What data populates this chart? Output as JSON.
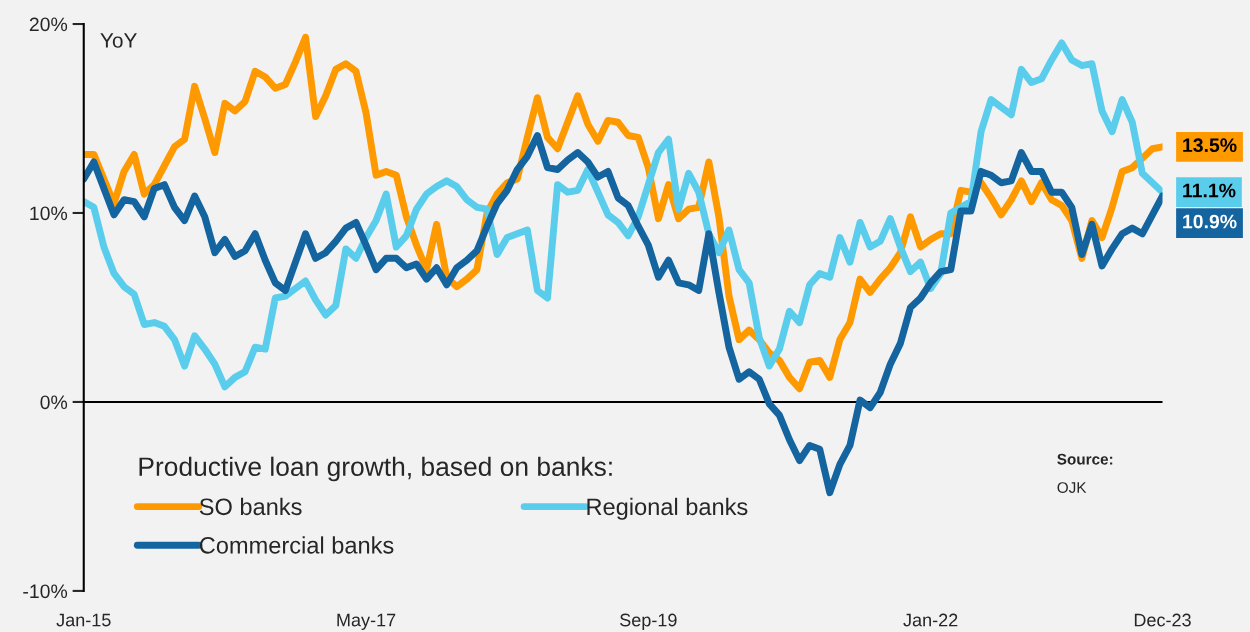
{
  "chart_data": {
    "type": "line",
    "ylabel": "YoY",
    "legend_title": "Productive loan growth, based on banks:",
    "annotations": [
      "Source:",
      "OJK"
    ],
    "x": [
      "2015-01",
      "2015-02",
      "2015-03",
      "2015-04",
      "2015-05",
      "2015-06",
      "2015-07",
      "2015-08",
      "2015-09",
      "2015-10",
      "2015-11",
      "2015-12",
      "2016-01",
      "2016-02",
      "2016-03",
      "2016-04",
      "2016-05",
      "2016-06",
      "2016-07",
      "2016-08",
      "2016-09",
      "2016-10",
      "2016-11",
      "2016-12",
      "2017-01",
      "2017-02",
      "2017-03",
      "2017-04",
      "2017-05",
      "2017-06",
      "2017-07",
      "2017-08",
      "2017-09",
      "2017-10",
      "2017-11",
      "2017-12",
      "2018-01",
      "2018-02",
      "2018-03",
      "2018-04",
      "2018-05",
      "2018-06",
      "2018-07",
      "2018-08",
      "2018-09",
      "2018-10",
      "2018-11",
      "2018-12",
      "2019-01",
      "2019-02",
      "2019-03",
      "2019-04",
      "2019-05",
      "2019-06",
      "2019-07",
      "2019-08",
      "2019-09",
      "2019-10",
      "2019-11",
      "2019-12",
      "2020-01",
      "2020-02",
      "2020-03",
      "2020-04",
      "2020-05",
      "2020-06",
      "2020-07",
      "2020-08",
      "2020-09",
      "2020-10",
      "2020-11",
      "2020-12",
      "2021-01",
      "2021-02",
      "2021-03",
      "2021-04",
      "2021-05",
      "2021-06",
      "2021-07",
      "2021-08",
      "2021-09",
      "2021-10",
      "2021-11",
      "2021-12",
      "2022-01",
      "2022-02",
      "2022-03",
      "2022-04",
      "2022-05",
      "2022-06",
      "2022-07",
      "2022-08",
      "2022-09",
      "2022-10",
      "2022-11",
      "2022-12",
      "2023-01",
      "2023-02",
      "2023-03",
      "2023-04",
      "2023-05",
      "2023-06",
      "2023-07",
      "2023-08",
      "2023-09",
      "2023-10",
      "2023-11",
      "2023-12"
    ],
    "xlim": [
      "2015-01",
      "2023-12"
    ],
    "xticks": [
      {
        "value": "2015-01",
        "label": "Jan-15"
      },
      {
        "value": "2017-05",
        "label": "May-17"
      },
      {
        "value": "2019-09",
        "label": "Sep-19"
      },
      {
        "value": "2022-01",
        "label": "Jan-22"
      },
      {
        "value": "2023-12",
        "label": "Dec-23"
      }
    ],
    "ylim": [
      -10,
      20
    ],
    "yticks": [
      {
        "value": -10,
        "label": "-10%"
      },
      {
        "value": 0,
        "label": "0%"
      },
      {
        "value": 10,
        "label": "10%"
      },
      {
        "value": 20,
        "label": "20%"
      }
    ],
    "ref_lines": [
      {
        "axis": "y",
        "value": 0,
        "color": "#000000"
      }
    ],
    "legend": "bottom left",
    "marker": "none",
    "line_style": "solid",
    "series": [
      {
        "name": "SO banks",
        "color": "#ff9900",
        "values": [
          13.1,
          13.1,
          11.8,
          10.5,
          12.2,
          13.1,
          11.0,
          11.5,
          12.5,
          13.5,
          13.9,
          16.7,
          15.0,
          13.2,
          15.8,
          15.4,
          15.9,
          17.5,
          17.2,
          16.6,
          16.8,
          18.0,
          19.3,
          15.1,
          16.2,
          17.6,
          17.9,
          17.5,
          15.3,
          12.0,
          12.2,
          12.0,
          9.8,
          8.3,
          7.0,
          9.4,
          6.6,
          6.1,
          6.5,
          7.0,
          10.0,
          11.0,
          11.6,
          11.8,
          14.0,
          16.1,
          14.0,
          13.4,
          14.8,
          16.2,
          14.7,
          13.8,
          14.9,
          14.8,
          14.1,
          14.0,
          12.4,
          9.7,
          11.5,
          9.7,
          10.2,
          10.3,
          12.7,
          9.8,
          5.6,
          3.3,
          3.8,
          3.3,
          2.6,
          2.2,
          1.3,
          0.7,
          2.1,
          2.2,
          1.3,
          3.3,
          4.2,
          6.5,
          5.8,
          6.5,
          7.1,
          7.9,
          9.8,
          8.2,
          8.6,
          8.9,
          8.9,
          11.2,
          11.1,
          11.6,
          10.8,
          9.9,
          10.7,
          11.7,
          10.6,
          11.6,
          10.7,
          10.4,
          9.6,
          7.6,
          9.6,
          8.7,
          10.3,
          12.2,
          12.4,
          12.9,
          13.4,
          13.5
        ],
        "value_labels": [
          null,
          null,
          null,
          null,
          null,
          null,
          null,
          null,
          null,
          null,
          null,
          null,
          null,
          null,
          null,
          null,
          null,
          null,
          null,
          null,
          null,
          null,
          null,
          null,
          null,
          null,
          null,
          null,
          null,
          null,
          null,
          null,
          null,
          null,
          null,
          null,
          null,
          null,
          null,
          null,
          null,
          null,
          null,
          null,
          null,
          null,
          null,
          null,
          null,
          null,
          null,
          null,
          null,
          null,
          null,
          null,
          null,
          null,
          null,
          null,
          null,
          null,
          null,
          null,
          null,
          null,
          null,
          null,
          null,
          null,
          null,
          null,
          null,
          null,
          null,
          null,
          null,
          null,
          null,
          null,
          null,
          null,
          null,
          null,
          null,
          null,
          null,
          null,
          null,
          null,
          null,
          null,
          null,
          null,
          null,
          null,
          null,
          null,
          null,
          null,
          null,
          null,
          null,
          null,
          null,
          null,
          null,
          "13.5%"
        ]
      },
      {
        "name": "Regional banks",
        "color": "#5bcdec",
        "values": [
          10.6,
          10.3,
          8.2,
          6.8,
          6.1,
          5.7,
          4.1,
          4.2,
          4.0,
          3.3,
          1.9,
          3.5,
          2.8,
          2.0,
          0.8,
          1.3,
          1.6,
          2.9,
          2.8,
          5.5,
          5.6,
          6.0,
          6.4,
          5.4,
          4.6,
          5.1,
          8.1,
          7.6,
          8.7,
          9.6,
          11.0,
          8.2,
          8.8,
          10.2,
          11.0,
          11.4,
          11.7,
          11.4,
          10.7,
          10.3,
          10.2,
          7.8,
          8.7,
          8.9,
          9.1,
          5.9,
          5.5,
          11.5,
          11.1,
          11.2,
          12.3,
          11.1,
          9.9,
          9.5,
          8.8,
          9.8,
          11.5,
          13.2,
          13.9,
          10.2,
          12.1,
          11.1,
          8.9,
          7.9,
          9.1,
          7.0,
          6.3,
          3.4,
          1.9,
          2.8,
          4.8,
          4.2,
          6.2,
          6.8,
          6.6,
          8.7,
          7.4,
          9.5,
          8.2,
          8.5,
          9.7,
          8.2,
          6.9,
          7.4,
          6.0,
          6.8,
          10.0,
          10.3,
          10.6,
          14.3,
          16.0,
          15.6,
          15.2,
          17.6,
          16.9,
          17.1,
          18.1,
          19.0,
          18.1,
          17.8,
          17.9,
          15.4,
          14.3,
          16.0,
          14.8,
          12.1,
          11.6,
          11.1
        ],
        "value_labels": [
          null,
          null,
          null,
          null,
          null,
          null,
          null,
          null,
          null,
          null,
          null,
          null,
          null,
          null,
          null,
          null,
          null,
          null,
          null,
          null,
          null,
          null,
          null,
          null,
          null,
          null,
          null,
          null,
          null,
          null,
          null,
          null,
          null,
          null,
          null,
          null,
          null,
          null,
          null,
          null,
          null,
          null,
          null,
          null,
          null,
          null,
          null,
          null,
          null,
          null,
          null,
          null,
          null,
          null,
          null,
          null,
          null,
          null,
          null,
          null,
          null,
          null,
          null,
          null,
          null,
          null,
          null,
          null,
          null,
          null,
          null,
          null,
          null,
          null,
          null,
          null,
          null,
          null,
          null,
          null,
          null,
          null,
          null,
          null,
          null,
          null,
          null,
          null,
          null,
          null,
          null,
          null,
          null,
          null,
          null,
          null,
          null,
          null,
          null,
          null,
          null,
          null,
          null,
          null,
          null,
          null,
          null,
          "11.1%"
        ]
      },
      {
        "name": "Commercial banks",
        "color": "#1464a0",
        "values": [
          11.8,
          12.7,
          11.3,
          9.9,
          10.7,
          10.6,
          9.8,
          11.3,
          11.5,
          10.3,
          9.6,
          10.9,
          9.8,
          7.9,
          8.6,
          7.7,
          8.0,
          8.9,
          7.5,
          6.3,
          5.9,
          7.4,
          8.9,
          7.6,
          7.9,
          8.5,
          9.2,
          9.5,
          8.3,
          7.0,
          7.6,
          7.6,
          7.1,
          7.3,
          6.5,
          7.1,
          6.2,
          7.1,
          7.5,
          8.0,
          9.3,
          10.5,
          11.2,
          12.3,
          13.0,
          14.1,
          12.4,
          12.3,
          12.8,
          13.2,
          12.7,
          11.9,
          12.2,
          10.8,
          10.4,
          9.3,
          8.3,
          6.6,
          7.5,
          6.3,
          6.2,
          5.9,
          8.9,
          5.8,
          2.9,
          1.2,
          1.6,
          1.2,
          -0.1,
          -0.7,
          -2.0,
          -3.1,
          -2.3,
          -2.5,
          -4.8,
          -3.3,
          -2.3,
          0.1,
          -0.3,
          0.5,
          2.0,
          3.1,
          5.0,
          5.5,
          6.3,
          6.9,
          7.0,
          10.1,
          10.1,
          12.2,
          12.0,
          11.6,
          11.7,
          13.2,
          12.2,
          12.2,
          11.1,
          11.1,
          10.3,
          7.8,
          9.4,
          7.2,
          8.1,
          8.9,
          9.2,
          8.9,
          9.9,
          10.9
        ],
        "value_labels": [
          null,
          null,
          null,
          null,
          null,
          null,
          null,
          null,
          null,
          null,
          null,
          null,
          null,
          null,
          null,
          null,
          null,
          null,
          null,
          null,
          null,
          null,
          null,
          null,
          null,
          null,
          null,
          null,
          null,
          null,
          null,
          null,
          null,
          null,
          null,
          null,
          null,
          null,
          null,
          null,
          null,
          null,
          null,
          null,
          null,
          null,
          null,
          null,
          null,
          null,
          null,
          null,
          null,
          null,
          null,
          null,
          null,
          null,
          null,
          null,
          null,
          null,
          null,
          null,
          null,
          null,
          null,
          null,
          null,
          null,
          null,
          null,
          null,
          null,
          null,
          null,
          null,
          null,
          null,
          null,
          null,
          null,
          null,
          null,
          null,
          null,
          null,
          null,
          null,
          null,
          null,
          null,
          null,
          null,
          null,
          null,
          null,
          null,
          null,
          null,
          null,
          null,
          null,
          null,
          null,
          null,
          null,
          "10.9%"
        ]
      }
    ]
  }
}
